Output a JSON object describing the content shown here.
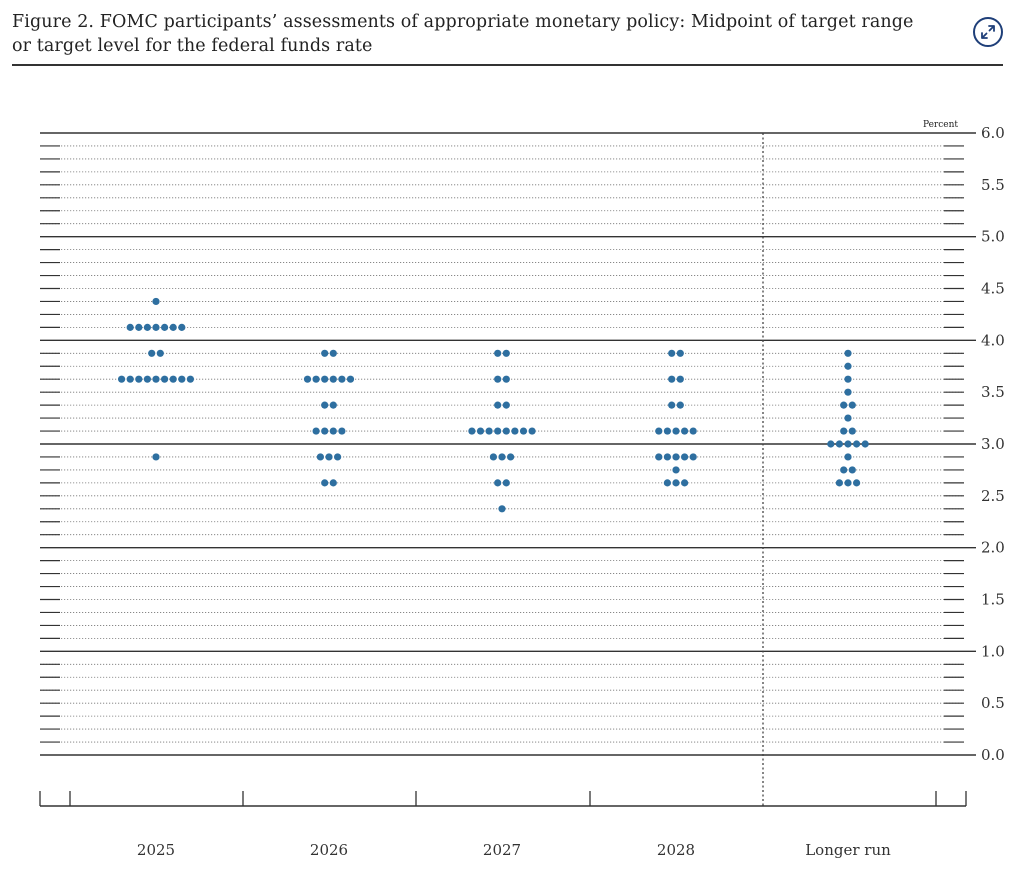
{
  "figure": {
    "title_line1": "Figure 2. FOMC participants’ assessments of appropriate monetary policy: Midpoint of target range",
    "title_line2": "or target level for the federal funds rate",
    "expand_icon": "expand-arrows-icon"
  },
  "chart_data": {
    "type": "scatter",
    "subtype": "dot-plot",
    "unit_label": "Percent",
    "categories": [
      "2025",
      "2026",
      "2027",
      "2028",
      "Longer run"
    ],
    "ylim": [
      0.0,
      6.0
    ],
    "yticks": [
      "0.0",
      "0.5",
      "1.0",
      "1.5",
      "2.0",
      "2.5",
      "3.0",
      "3.5",
      "4.0",
      "4.5",
      "5.0",
      "5.5",
      "6.0"
    ],
    "grid": "dotted minor at 0.125, solid major at whole percents",
    "dot_color": "#2e6fa0",
    "dots": [
      {
        "category": "2025",
        "counts": [
          [
            4.375,
            1
          ],
          [
            4.125,
            7
          ],
          [
            3.875,
            2
          ],
          [
            3.625,
            9
          ],
          [
            2.875,
            1
          ]
        ]
      },
      {
        "category": "2026",
        "counts": [
          [
            3.875,
            2
          ],
          [
            3.625,
            6
          ],
          [
            3.375,
            2
          ],
          [
            3.125,
            4
          ],
          [
            2.875,
            3
          ],
          [
            2.625,
            2
          ]
        ]
      },
      {
        "category": "2027",
        "counts": [
          [
            3.875,
            2
          ],
          [
            3.625,
            2
          ],
          [
            3.375,
            2
          ],
          [
            3.125,
            8
          ],
          [
            2.875,
            3
          ],
          [
            2.625,
            2
          ],
          [
            2.375,
            1
          ]
        ]
      },
      {
        "category": "2028",
        "counts": [
          [
            3.875,
            2
          ],
          [
            3.625,
            2
          ],
          [
            3.375,
            2
          ],
          [
            3.125,
            5
          ],
          [
            2.875,
            5
          ],
          [
            2.75,
            1
          ],
          [
            2.625,
            3
          ]
        ]
      },
      {
        "category": "Longer run",
        "counts": [
          [
            3.875,
            1
          ],
          [
            3.75,
            1
          ],
          [
            3.625,
            1
          ],
          [
            3.5,
            1
          ],
          [
            3.375,
            2
          ],
          [
            3.25,
            1
          ],
          [
            3.125,
            2
          ],
          [
            3.0,
            5
          ],
          [
            2.875,
            1
          ],
          [
            2.75,
            2
          ],
          [
            2.625,
            3
          ]
        ]
      }
    ]
  }
}
